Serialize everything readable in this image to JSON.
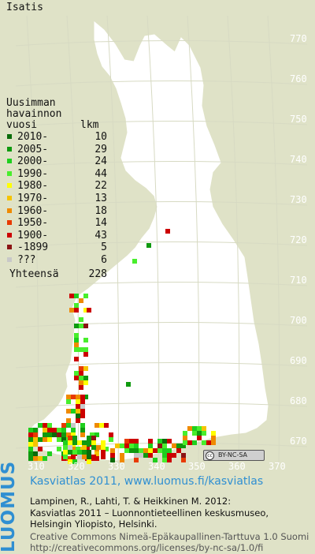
{
  "title": "Isatis",
  "legend": {
    "header": [
      "Uusimman",
      "havainnon",
      "vuosi"
    ],
    "count_header": "lkm",
    "items": [
      {
        "label": "2010-",
        "count": "10",
        "color": "#0a6b0a"
      },
      {
        "label": "2005-",
        "count": "29",
        "color": "#0f9a0f"
      },
      {
        "label": "2000-",
        "count": "24",
        "color": "#1ecf1e"
      },
      {
        "label": "1990-",
        "count": "44",
        "color": "#48ee2c"
      },
      {
        "label": "1980-",
        "count": "22",
        "color": "#ffff00"
      },
      {
        "label": "1970-",
        "count": "13",
        "color": "#f5c400"
      },
      {
        "label": "1960-",
        "count": "18",
        "color": "#ef8a00"
      },
      {
        "label": "1950-",
        "count": "14",
        "color": "#e83a00"
      },
      {
        "label": "1900-",
        "count": "43",
        "color": "#cc0000"
      },
      {
        "label": "-1899",
        "count": "5",
        "color": "#8b1414"
      },
      {
        "label": "???",
        "count": "6",
        "color": "#c8c8c8"
      }
    ],
    "total_label": "Yhteensä",
    "total": "228"
  },
  "axes": {
    "y_ticks": [
      "770",
      "760",
      "750",
      "740",
      "730",
      "720",
      "710",
      "700",
      "690",
      "680",
      "670"
    ],
    "x_ticks": [
      "310",
      "320",
      "330",
      "340",
      "350",
      "360",
      "370"
    ]
  },
  "license_badge": "BY-NC-SA",
  "footer": {
    "brand": "LUOMUS",
    "site": "Kasviatlas 2011, www.luomus.fi/kasviatlas",
    "citation": [
      "Lampinen, R., Lahti, T. & Heikkinen M. 2012:",
      "Kasviatlas 2011 – Luonnontieteellinen keskusmuseo,",
      "Helsingin Yliopisto, Helsinki."
    ],
    "license": [
      "Creative Commons Nimeä-Epäkaupallinen-Tarttuva 1.0 Suomi",
      "http://creativecommons.org/licenses/by-nc-sa/1.0/fi"
    ]
  },
  "colors": {
    "background": "#dfe2c7",
    "land": "#ffffff",
    "grid": "#d7dac3",
    "brand": "#2f8fd2"
  }
}
